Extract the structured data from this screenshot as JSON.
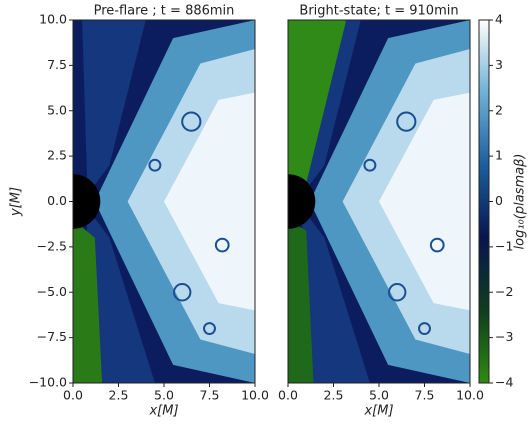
{
  "chart_data": [
    {
      "type": "image",
      "title": "Pre-flare ; t = 886min",
      "xlabel": "x[M]",
      "ylabel": "y[M]",
      "xlim": [
        0,
        10
      ],
      "ylim": [
        -10,
        10
      ],
      "xticks": [
        {
          "value": 0,
          "label": "0.0"
        },
        {
          "value": 2.5,
          "label": "2.5"
        },
        {
          "value": 5,
          "label": "5.0"
        },
        {
          "value": 7.5,
          "label": "7.5"
        },
        {
          "value": 10,
          "label": "10.0"
        }
      ],
      "yticks": [
        {
          "value": -10,
          "label": "−10.0"
        },
        {
          "value": -7.5,
          "label": "−7.5"
        },
        {
          "value": -5,
          "label": "−5.0"
        },
        {
          "value": -2.5,
          "label": "−2.5"
        },
        {
          "value": 0,
          "label": "0.0"
        },
        {
          "value": 2.5,
          "label": "2.5"
        },
        {
          "value": 5,
          "label": "5.0"
        },
        {
          "value": 7.5,
          "label": "7.5"
        },
        {
          "value": 10,
          "label": "10.0"
        }
      ]
    },
    {
      "type": "image",
      "title": "Bright-state; t = 910min",
      "xlabel": "x[M]",
      "xlim": [
        0,
        10
      ],
      "ylim": [
        -10,
        10
      ],
      "xticks": [
        {
          "value": 0,
          "label": "0.0"
        },
        {
          "value": 2.5,
          "label": "2.5"
        },
        {
          "value": 5,
          "label": "5.0"
        },
        {
          "value": 7.5,
          "label": "7.5"
        },
        {
          "value": 10,
          "label": "10.0"
        }
      ]
    },
    {
      "type": "colorbar",
      "label": "log₁₀(plasmaβ)",
      "clim": [
        -4,
        4
      ],
      "ticks": [
        {
          "value": -4,
          "label": "−4"
        },
        {
          "value": -3,
          "label": "−3"
        },
        {
          "value": -2,
          "label": "−2"
        },
        {
          "value": -1,
          "label": "−1"
        },
        0,
        1,
        2,
        3,
        4
      ],
      "colors": [
        "#2e8b10",
        "#0f3d1e",
        "#08164f",
        "#1b5e9e",
        "#6fb0d6",
        "#ffffff"
      ]
    }
  ]
}
